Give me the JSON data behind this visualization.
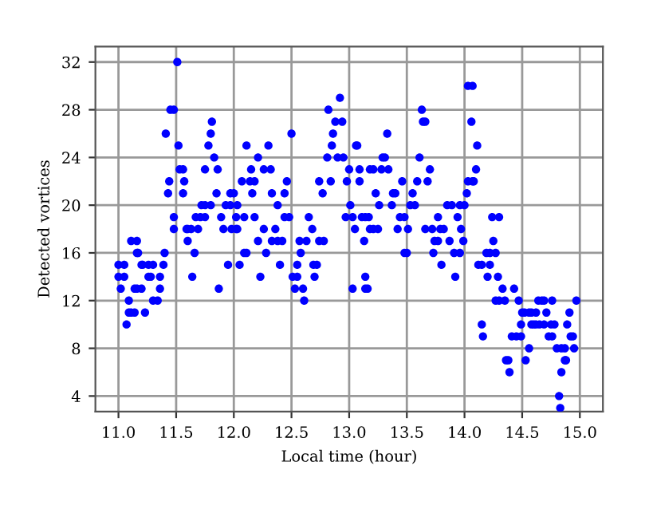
{
  "chart_data": {
    "type": "scatter",
    "xlabel": "Local time (hour)",
    "ylabel": "Detected vortices",
    "xlim": [
      10.8,
      15.2
    ],
    "ylim": [
      2.7,
      33.3
    ],
    "xticks": [
      {
        "value": 11.0,
        "label": "11.0"
      },
      {
        "value": 11.5,
        "label": "11.5"
      },
      {
        "value": 12.0,
        "label": "12.0"
      },
      {
        "value": 12.5,
        "label": "12.5"
      },
      {
        "value": 13.0,
        "label": "13.0"
      },
      {
        "value": 13.5,
        "label": "13.5"
      },
      {
        "value": 14.0,
        "label": "14.0"
      },
      {
        "value": 14.5,
        "label": "14.5"
      },
      {
        "value": 15.0,
        "label": "15.0"
      }
    ],
    "yticks": [
      4,
      8,
      12,
      16,
      20,
      24,
      28,
      32
    ],
    "grid": true,
    "marker": "circle",
    "series": [
      {
        "color": "#0000ff",
        "x": [
          11.0,
          11.0,
          11.02,
          11.05,
          11.05,
          11.07,
          11.09,
          11.09,
          11.11,
          11.11,
          11.14,
          11.14,
          11.16,
          11.16,
          11.16,
          11.17,
          11.2,
          11.2,
          11.21,
          11.23,
          11.26,
          11.26,
          11.28,
          11.3,
          11.3,
          11.34,
          11.36,
          11.36,
          11.39,
          11.4,
          11.41,
          11.43,
          11.44,
          11.45,
          11.48,
          11.48,
          11.48,
          11.51,
          11.52,
          11.53,
          11.56,
          11.56,
          11.57,
          11.59,
          11.6,
          11.6,
          11.63,
          11.64,
          11.66,
          11.67,
          11.69,
          11.71,
          11.72,
          11.75,
          11.75,
          11.75,
          11.78,
          11.8,
          11.8,
          11.81,
          11.83,
          11.85,
          11.86,
          11.87,
          11.89,
          11.91,
          11.93,
          11.95,
          11.97,
          11.97,
          11.98,
          12.0,
          12.02,
          12.02,
          12.03,
          12.03,
          12.05,
          12.07,
          12.09,
          12.09,
          12.11,
          12.11,
          12.14,
          12.15,
          12.16,
          12.18,
          12.18,
          12.21,
          12.21,
          12.23,
          12.26,
          12.26,
          12.28,
          12.3,
          12.32,
          12.33,
          12.33,
          12.36,
          12.38,
          12.38,
          12.4,
          12.42,
          12.44,
          12.44,
          12.46,
          12.48,
          12.5,
          12.51,
          12.53,
          12.55,
          12.55,
          12.57,
          12.58,
          12.6,
          12.61,
          12.63,
          12.65,
          12.68,
          12.69,
          12.7,
          12.72,
          12.74,
          12.74,
          12.77,
          12.78,
          12.81,
          12.82,
          12.84,
          12.85,
          12.86,
          12.88,
          12.9,
          12.92,
          12.94,
          12.95,
          12.97,
          12.98,
          13.0,
          13.01,
          13.03,
          13.03,
          13.05,
          13.06,
          13.07,
          13.09,
          13.09,
          13.11,
          13.13,
          13.14,
          13.14,
          13.14,
          13.16,
          13.17,
          13.18,
          13.18,
          13.21,
          13.21,
          13.23,
          13.25,
          13.26,
          13.28,
          13.29,
          13.31,
          13.33,
          13.34,
          13.37,
          13.38,
          13.4,
          13.42,
          13.44,
          13.46,
          13.48,
          13.48,
          13.5,
          13.51,
          13.53,
          13.55,
          13.57,
          13.59,
          13.61,
          13.63,
          13.64,
          13.66,
          13.66,
          13.68,
          13.7,
          13.72,
          13.73,
          13.74,
          13.77,
          13.77,
          13.79,
          13.8,
          13.82,
          13.85,
          13.87,
          13.89,
          13.91,
          13.92,
          13.94,
          13.96,
          13.96,
          13.97,
          13.99,
          14.0,
          14.02,
          14.03,
          14.03,
          14.07,
          14.07,
          14.06,
          14.08,
          14.1,
          14.11,
          14.12,
          14.15,
          14.15,
          14.16,
          14.19,
          14.2,
          14.22,
          14.22,
          14.24,
          14.25,
          14.27,
          14.27,
          14.29,
          14.3,
          14.3,
          14.33,
          14.35,
          14.36,
          14.38,
          14.39,
          14.41,
          14.43,
          14.45,
          14.47,
          14.49,
          14.49,
          14.5,
          14.52,
          14.53,
          14.56,
          14.56,
          14.58,
          14.58,
          14.6,
          14.62,
          14.62,
          14.64,
          14.65,
          14.67,
          14.69,
          14.69,
          14.71,
          14.73,
          14.75,
          14.76,
          14.76,
          14.78,
          14.8,
          14.82,
          14.83,
          14.84,
          14.84,
          14.87,
          14.87,
          14.88,
          14.89,
          14.91,
          14.92,
          14.94,
          14.95,
          14.97
        ],
        "values": [
          14,
          15,
          13,
          15,
          14,
          10,
          12,
          11,
          17,
          11,
          11,
          13,
          17,
          16,
          13,
          16,
          13,
          15,
          15,
          11,
          15,
          14,
          14,
          15,
          12,
          12,
          13,
          14,
          15,
          16,
          26,
          21,
          22,
          28,
          28,
          18,
          19,
          32,
          25,
          23,
          23,
          21,
          22,
          18,
          18,
          17,
          18,
          14,
          16,
          19,
          18,
          19,
          20,
          23,
          20,
          19,
          25,
          20,
          26,
          27,
          24,
          21,
          23,
          13,
          19,
          18,
          20,
          15,
          21,
          20,
          18,
          21,
          19,
          18,
          20,
          18,
          15,
          22,
          19,
          16,
          25,
          16,
          22,
          23,
          21,
          22,
          19,
          24,
          17,
          14,
          23,
          18,
          16,
          25,
          23,
          21,
          17,
          18,
          20,
          17,
          15,
          17,
          21,
          19,
          22,
          19,
          26,
          14,
          13,
          15,
          14,
          17,
          16,
          13,
          12,
          17,
          19,
          18,
          15,
          14,
          15,
          17,
          22,
          21,
          17,
          24,
          28,
          22,
          25,
          26,
          27,
          24,
          29,
          27,
          24,
          19,
          22,
          23,
          20,
          19,
          13,
          18,
          25,
          25,
          23,
          22,
          19,
          17,
          19,
          14,
          13,
          13,
          19,
          23,
          18,
          23,
          18,
          21,
          18,
          20,
          23,
          24,
          24,
          26,
          23,
          20,
          21,
          21,
          18,
          19,
          22,
          19,
          16,
          16,
          18,
          20,
          21,
          20,
          22,
          24,
          28,
          27,
          27,
          18,
          22,
          23,
          18,
          16,
          17,
          19,
          17,
          18,
          15,
          18,
          20,
          17,
          20,
          16,
          14,
          19,
          20,
          16,
          18,
          17,
          20,
          21,
          22,
          30,
          30,
          22,
          27,
          22,
          23,
          25,
          15,
          15,
          10,
          9,
          16,
          14,
          16,
          15,
          19,
          17,
          16,
          12,
          14,
          19,
          12,
          13,
          12,
          7,
          7,
          6,
          9,
          13,
          9,
          12,
          10,
          9,
          11,
          11,
          7,
          11,
          8,
          10,
          11,
          10,
          11,
          10,
          12,
          10,
          12,
          10,
          12,
          11,
          9,
          10,
          12,
          9,
          10,
          8,
          4,
          3,
          8,
          6,
          8,
          7,
          7,
          10,
          11,
          9,
          9,
          8,
          12
        ]
      }
    ]
  }
}
